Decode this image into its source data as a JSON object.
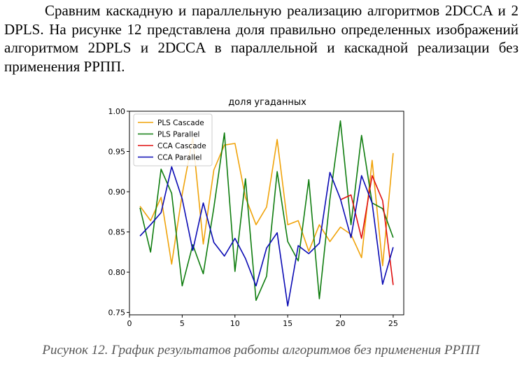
{
  "paragraph": "Сравним каскадную и параллельную реализацию алгоритмов 2DCCA и 2 DPLS. На рисунке 12 представлена доля правильно определенных изображений алгоритмом 2DPLS и 2DCCA в параллельной и каскадной реализации без применения РРПП.",
  "caption": "Рисунок 12. График результатов работы алгоритмов без применения РРПП",
  "chart_data": {
    "type": "line",
    "title": "доля угаданных",
    "xlabel": "",
    "ylabel": "",
    "xlim": [
      0,
      26
    ],
    "ylim": [
      0.747,
      1.0
    ],
    "xticks": [
      0,
      5,
      10,
      15,
      20,
      25
    ],
    "yticks": [
      0.75,
      0.8,
      0.85,
      0.9,
      0.95,
      1.0
    ],
    "ytick_labels": [
      "0.75",
      "0.80",
      "0.85",
      "0.90",
      "0.95",
      "1.00"
    ],
    "grid": false,
    "legend_position": "top-left",
    "series": [
      {
        "name": "PLS Cascade",
        "color": "#f0a30a",
        "x": [
          1,
          2,
          3,
          4,
          5,
          6,
          7,
          8,
          9,
          10,
          11,
          12,
          13,
          14,
          15,
          16,
          17,
          18,
          19,
          20,
          21,
          22,
          23,
          24,
          25
        ],
        "y": [
          0.882,
          0.864,
          0.893,
          0.81,
          0.897,
          0.967,
          0.835,
          0.927,
          0.958,
          0.96,
          0.893,
          0.859,
          0.881,
          0.965,
          0.859,
          0.864,
          0.826,
          0.859,
          0.838,
          0.856,
          0.847,
          0.818,
          0.939,
          0.808,
          0.948
        ]
      },
      {
        "name": "PLS Parallel",
        "color": "#0f7d0f",
        "x": [
          1,
          2,
          3,
          4,
          5,
          6,
          7,
          8,
          9,
          10,
          11,
          12,
          13,
          14,
          15,
          16,
          17,
          18,
          19,
          20,
          21,
          22,
          23,
          24,
          25
        ],
        "y": [
          0.88,
          0.825,
          0.928,
          0.898,
          0.783,
          0.834,
          0.798,
          0.88,
          0.973,
          0.801,
          0.916,
          0.765,
          0.795,
          0.925,
          0.838,
          0.814,
          0.915,
          0.767,
          0.891,
          0.988,
          0.859,
          0.97,
          0.886,
          0.879,
          0.843
        ]
      },
      {
        "name": "CCA Cascade",
        "color": "#e01010",
        "x": [
          20,
          21,
          22,
          23,
          24,
          25
        ],
        "y": [
          0.89,
          0.896,
          0.842,
          0.92,
          0.889,
          0.784
        ]
      },
      {
        "name": "CCA Parallel",
        "color": "#0a0ab4",
        "x": [
          1,
          2,
          3,
          4,
          5,
          6,
          7,
          8,
          9,
          10,
          11,
          12,
          13,
          14,
          15,
          16,
          17,
          18,
          19,
          20,
          21,
          22,
          23,
          24,
          25
        ],
        "y": [
          0.845,
          0.859,
          0.874,
          0.931,
          0.891,
          0.827,
          0.886,
          0.837,
          0.82,
          0.842,
          0.817,
          0.783,
          0.83,
          0.849,
          0.758,
          0.833,
          0.823,
          0.836,
          0.924,
          0.891,
          0.843,
          0.92,
          0.886,
          0.785,
          0.831
        ]
      }
    ]
  }
}
